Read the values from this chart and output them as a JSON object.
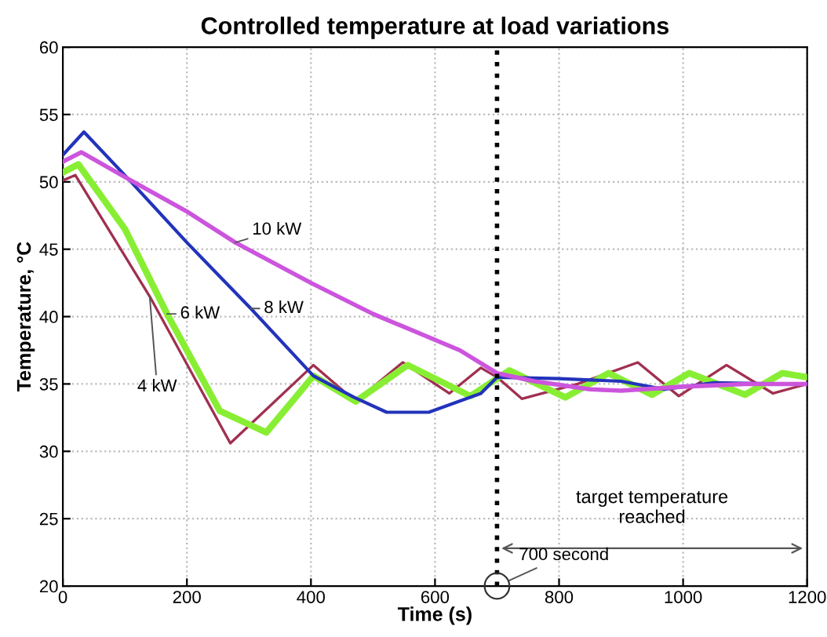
{
  "chart_data": {
    "type": "line",
    "title": "Controlled temperature at load variations",
    "xlabel": "Time (s)",
    "ylabel": "Temperature, °C",
    "xlim": [
      0,
      1200
    ],
    "ylim": [
      20,
      60
    ],
    "xticks": [
      0,
      200,
      400,
      600,
      800,
      1000,
      1200
    ],
    "yticks": [
      20,
      25,
      30,
      35,
      40,
      45,
      50,
      55,
      60
    ],
    "grid": true,
    "line_style": "solid",
    "marker": "none",
    "series": [
      {
        "name": "10 kW",
        "color": "#cc55dd",
        "x": [
          0,
          30,
          110,
          200,
          278,
          400,
          500,
          640,
          700,
          760,
          850,
          900,
          1000,
          1100,
          1200
        ],
        "values": [
          51.5,
          52.2,
          50.1,
          47.8,
          45.5,
          42.5,
          40.2,
          37.5,
          35.8,
          35.2,
          34.6,
          34.5,
          34.8,
          35.0,
          35.0
        ]
      },
      {
        "name": "8 kW",
        "color": "#2233bb",
        "x": [
          0,
          34,
          110,
          200,
          303,
          404,
          470,
          522,
          590,
          674,
          700,
          800,
          900,
          970,
          1050,
          1150,
          1200
        ],
        "values": [
          52.0,
          53.7,
          50.0,
          45.5,
          40.6,
          35.6,
          34.0,
          32.9,
          32.9,
          34.3,
          35.5,
          35.4,
          35.2,
          34.6,
          35.1,
          35.0,
          35.0
        ]
      },
      {
        "name": "6 kW",
        "color": "#88ee33",
        "x": [
          0,
          25,
          100,
          168,
          253,
          328,
          404,
          472,
          556,
          657,
          720,
          810,
          880,
          950,
          1010,
          1100,
          1160,
          1200
        ],
        "values": [
          50.7,
          51.3,
          46.5,
          40.2,
          33.0,
          31.4,
          35.6,
          33.7,
          36.4,
          34.1,
          36.0,
          34.0,
          35.8,
          34.2,
          35.8,
          34.2,
          35.8,
          35.5
        ]
      },
      {
        "name": "4 kW",
        "color": "#a03050",
        "x": [
          0,
          20,
          140,
          270,
          404,
          472,
          548,
          623,
          674,
          700,
          740,
          830,
          927,
          993,
          1070,
          1145,
          1200
        ],
        "values": [
          50.1,
          50.5,
          41.5,
          30.6,
          36.4,
          33.7,
          36.6,
          34.3,
          36.2,
          35.5,
          33.9,
          35.0,
          36.6,
          34.1,
          36.4,
          34.3,
          35.0
        ]
      }
    ],
    "ref_lines": [
      {
        "axis": "x",
        "value": 700,
        "color": "#000000",
        "line_style": "dotted"
      }
    ],
    "annotations": [
      "target temperature\nreached",
      {
        "text": "700 second",
        "x": 700,
        "y": 20
      }
    ]
  }
}
